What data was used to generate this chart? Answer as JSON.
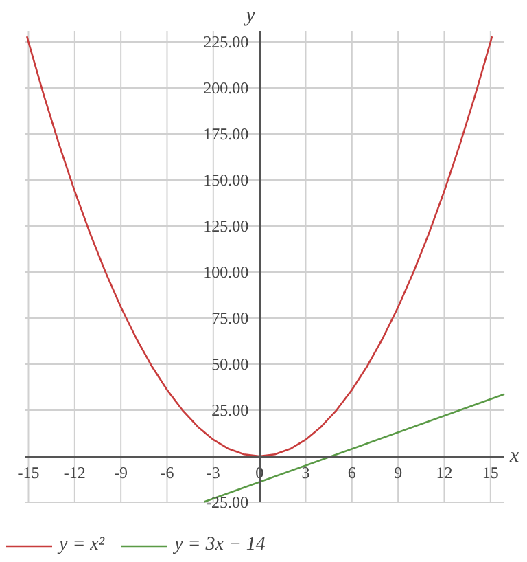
{
  "chart_data": {
    "type": "line",
    "xlabel": "x",
    "ylabel": "y",
    "xlim": [
      -15.2,
      15.9
    ],
    "ylim": [
      -25,
      231
    ],
    "xticks": [
      -15,
      -12,
      -9,
      -6,
      -3,
      0,
      3,
      6,
      9,
      12,
      15
    ],
    "yticks": [
      {
        "value": -25,
        "label": "-25.00"
      },
      {
        "value": 0,
        "label": null
      },
      {
        "value": 25,
        "label": "25.00"
      },
      {
        "value": 50,
        "label": "50.00"
      },
      {
        "value": 75,
        "label": "75.00"
      },
      {
        "value": 100,
        "label": "100.00"
      },
      {
        "value": 125,
        "label": "125.00"
      },
      {
        "value": 150,
        "label": "150.00"
      },
      {
        "value": 175,
        "label": "175.00"
      },
      {
        "value": 200,
        "label": "200.00"
      },
      {
        "value": 225,
        "label": "225.00"
      }
    ],
    "grid": true,
    "legend": "bottom",
    "line_style": "solid",
    "marker": "none",
    "series": [
      {
        "name": "y = x²",
        "color": "#c83c3c",
        "x": [
          -15.1,
          -15,
          -14,
          -13,
          -12,
          -11,
          -10,
          -9,
          -8,
          -7,
          -6,
          -5,
          -4,
          -3,
          -2,
          -1,
          0,
          1,
          2,
          3,
          4,
          5,
          6,
          7,
          8,
          9,
          10,
          11,
          12,
          13,
          14,
          15,
          15.1
        ],
        "values": [
          228,
          225,
          196,
          169,
          144,
          121,
          100,
          81,
          64,
          49,
          36,
          25,
          16,
          9,
          4,
          1,
          0,
          1,
          4,
          9,
          16,
          25,
          36,
          49,
          64,
          81,
          100,
          121,
          144,
          169,
          196,
          225,
          228
        ]
      },
      {
        "name": "y = 3x − 14",
        "color": "#5a9a46",
        "x": [
          -3.6,
          15.9
        ],
        "values": [
          -24.8,
          33.7
        ]
      }
    ]
  }
}
